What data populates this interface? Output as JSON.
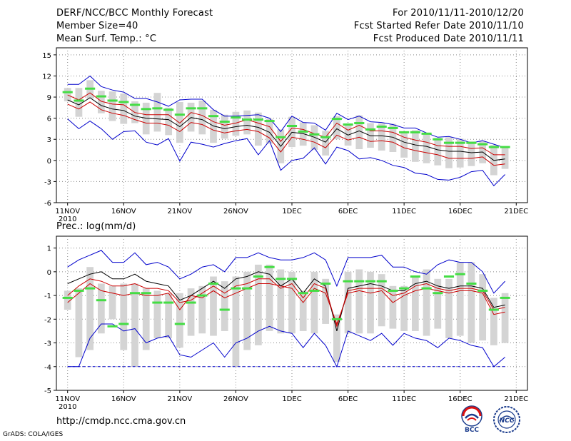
{
  "header": {
    "title": "DERF/NCC/BCC Monthly Forecast",
    "member_size": "Member Size=40",
    "variable": "Mean Surf. Temp.: °C",
    "period": "For 2010/11/11-2010/12/20",
    "fcst_started": "Fcst Started Refer Date 2010/11/10",
    "fcst_produced": "Fcst Produced Date 2010/11/11"
  },
  "footer": {
    "url": "http://cmdp.ncc.cma.gov.cn",
    "credit": "GrADS: COLA/IGES",
    "logo_left_text": "BCC",
    "logo_right_text": "NCC"
  },
  "colors": {
    "envelope": "#0000cc",
    "spread": "#cc0000",
    "mean": "#000000",
    "box": "#d4d4d4",
    "median": "#44dd44",
    "grid": "#888888"
  },
  "chart_data": [
    {
      "type": "line",
      "title": "Mean Surf. Temp.: °C",
      "ylim": [
        -6,
        16
      ],
      "yticks": [
        -6,
        -3,
        0,
        3,
        6,
        9,
        12,
        15
      ],
      "x_ticks": [
        "11NOV",
        "16NOV",
        "21NOV",
        "26NOV",
        "1DEC",
        "6DEC",
        "11DEC",
        "16DEC",
        "21DEC"
      ],
      "x_year_label": "2010",
      "days": 40,
      "series": [
        {
          "name": "max",
          "role": "envelope",
          "values": [
            10.8,
            10.8,
            12.0,
            10.5,
            10.0,
            9.7,
            8.8,
            8.8,
            8.3,
            7.7,
            8.6,
            8.7,
            8.7,
            7.2,
            6.3,
            6.3,
            6.4,
            6.5,
            6.0,
            4.1,
            6.3,
            5.4,
            5.3,
            4.3,
            6.7,
            5.8,
            6.3,
            5.5,
            5.4,
            5.1,
            4.6,
            4.6,
            3.9,
            3.3,
            3.4,
            3.0,
            2.5,
            2.8,
            2.3,
            1.8
          ]
        },
        {
          "name": "upper",
          "role": "spread",
          "values": [
            9.3,
            8.6,
            9.6,
            8.4,
            8.0,
            7.9,
            6.8,
            6.5,
            6.5,
            6.5,
            5.3,
            6.8,
            6.4,
            5.5,
            5.0,
            5.3,
            5.8,
            5.3,
            4.8,
            2.7,
            4.6,
            4.4,
            3.8,
            3.3,
            5.3,
            4.3,
            5.0,
            4.2,
            4.2,
            4.0,
            3.3,
            2.9,
            2.6,
            2.1,
            2.0,
            2.0,
            1.7,
            1.8,
            0.8,
            0.8
          ]
        },
        {
          "name": "mean",
          "role": "mean",
          "values": [
            8.6,
            7.9,
            8.9,
            7.8,
            7.3,
            7.1,
            6.3,
            6.0,
            5.9,
            5.8,
            4.8,
            6.1,
            5.8,
            4.9,
            4.5,
            4.8,
            5.0,
            4.7,
            4.0,
            2.0,
            4.0,
            3.8,
            3.3,
            2.6,
            4.5,
            3.6,
            4.2,
            3.5,
            3.5,
            3.3,
            2.6,
            2.2,
            2.0,
            1.5,
            1.3,
            1.3,
            1.1,
            1.2,
            0.0,
            0.2
          ]
        },
        {
          "name": "lower",
          "role": "spread",
          "values": [
            8.0,
            7.3,
            8.3,
            7.2,
            6.7,
            6.4,
            5.8,
            5.3,
            5.3,
            5.0,
            4.1,
            5.4,
            5.1,
            4.3,
            3.9,
            4.2,
            4.4,
            4.1,
            3.2,
            1.2,
            3.3,
            3.0,
            2.6,
            1.8,
            3.6,
            2.9,
            3.3,
            2.7,
            2.8,
            2.6,
            1.8,
            1.4,
            1.1,
            0.8,
            0.3,
            0.3,
            0.3,
            0.5,
            -0.7,
            -0.5
          ]
        },
        {
          "name": "min",
          "role": "envelope",
          "values": [
            5.9,
            4.5,
            5.6,
            4.5,
            3.0,
            4.1,
            4.2,
            2.6,
            2.2,
            3.1,
            -0.1,
            2.6,
            2.3,
            1.9,
            2.4,
            2.8,
            3.1,
            0.8,
            2.8,
            -1.4,
            0.0,
            0.3,
            1.8,
            -0.5,
            1.9,
            1.4,
            0.2,
            0.4,
            0.0,
            -0.7,
            -1.0,
            -1.8,
            -2.0,
            -2.7,
            -2.8,
            -2.4,
            -1.6,
            -1.4,
            -3.6,
            -2.0
          ]
        }
      ],
      "box_low": [
        8.4,
        6.2,
        8.8,
        6.7,
        5.6,
        5.2,
        5.3,
        3.7,
        4.1,
        3.6,
        2.5,
        4.1,
        3.7,
        2.5,
        3.1,
        3.5,
        3.7,
        2.1,
        2.4,
        -0.4,
        1.9,
        2.1,
        1.5,
        0.7,
        3.0,
        2.1,
        1.6,
        1.8,
        1.4,
        1.2,
        0.4,
        -0.2,
        -0.4,
        -0.7,
        -1.1,
        -1.0,
        -0.8,
        -0.4,
        -2.1,
        -1.2
      ],
      "box_high": [
        10.3,
        10.3,
        11.4,
        9.9,
        9.8,
        9.5,
        8.4,
        8.2,
        9.6,
        7.5,
        8.3,
        8.2,
        8.5,
        7.2,
        6.5,
        6.9,
        7.1,
        6.8,
        5.9,
        4.4,
        6.2,
        5.4,
        5.0,
        4.2,
        6.3,
        5.2,
        6.4,
        5.3,
        5.3,
        5.2,
        4.1,
        4.3,
        3.7,
        3.2,
        3.3,
        3.1,
        2.7,
        2.7,
        2.2,
        1.9
      ],
      "median": [
        9.7,
        8.5,
        10.2,
        9.1,
        8.5,
        8.3,
        7.9,
        7.3,
        7.4,
        7.2,
        6.5,
        7.4,
        7.4,
        6.3,
        5.5,
        6.1,
        5.8,
        5.8,
        5.6,
        3.3,
        4.9,
        4.1,
        3.7,
        3.3,
        5.9,
        5.1,
        5.3,
        4.4,
        4.8,
        4.6,
        4.0,
        4.0,
        3.8,
        3.0,
        2.5,
        2.5,
        2.5,
        2.3,
        1.9,
        1.9
      ]
    },
    {
      "type": "line",
      "title": "Prec.: log(mm/d)",
      "ylim": [
        -5,
        1.5
      ],
      "yticks": [
        -5,
        -4,
        -3,
        -2,
        -1,
        0,
        1
      ],
      "x_ticks": [
        "11NOV",
        "16NOV",
        "21NOV",
        "26NOV",
        "1DEC",
        "6DEC",
        "11DEC",
        "16DEC",
        "21DEC"
      ],
      "x_year_label": "2010",
      "days": 40,
      "series": [
        {
          "name": "max",
          "role": "envelope",
          "values": [
            0.2,
            0.5,
            0.7,
            0.9,
            0.4,
            0.4,
            0.8,
            0.3,
            0.4,
            0.2,
            -0.3,
            -0.1,
            0.2,
            0.3,
            0.0,
            0.6,
            0.6,
            0.8,
            0.6,
            0.5,
            0.5,
            0.6,
            0.8,
            0.5,
            -0.6,
            0.6,
            0.6,
            0.6,
            0.7,
            0.2,
            0.2,
            0.0,
            -0.1,
            0.3,
            0.5,
            0.4,
            0.4,
            0.0,
            -0.9,
            -0.4
          ]
        },
        {
          "name": "upper",
          "role": "spread",
          "values": [
            -1.3,
            -0.9,
            -0.5,
            -0.8,
            -0.9,
            -1.0,
            -0.9,
            -1.0,
            -1.0,
            -0.9,
            -1.6,
            -1.0,
            -1.1,
            -0.8,
            -1.1,
            -0.9,
            -0.7,
            -0.5,
            -0.5,
            -0.6,
            -0.7,
            -1.3,
            -0.7,
            -0.9,
            -2.2,
            -0.9,
            -0.8,
            -0.9,
            -0.8,
            -1.3,
            -1.0,
            -0.8,
            -0.7,
            -0.8,
            -0.9,
            -0.8,
            -0.8,
            -0.9,
            -1.8,
            -1.7
          ]
        },
        {
          "name": "mean",
          "role": "mean",
          "values": [
            -0.5,
            -0.3,
            -0.1,
            0.0,
            -0.3,
            -0.3,
            -0.1,
            -0.4,
            -0.5,
            -0.6,
            -1.2,
            -1.0,
            -0.7,
            -0.4,
            -0.7,
            -0.3,
            -0.2,
            0.0,
            -0.1,
            -0.6,
            -0.3,
            -0.9,
            -0.3,
            -0.6,
            -2.5,
            -0.7,
            -0.6,
            -0.5,
            -0.6,
            -0.8,
            -0.8,
            -0.5,
            -0.4,
            -0.6,
            -0.7,
            -0.6,
            -0.6,
            -0.7,
            -1.5,
            -1.4
          ]
        },
        {
          "name": "lower",
          "role": "spread",
          "values": [
            -1.0,
            -0.6,
            -0.3,
            -0.4,
            -0.6,
            -0.6,
            -0.5,
            -0.7,
            -0.7,
            -0.8,
            -1.3,
            -1.2,
            -0.9,
            -0.6,
            -0.9,
            -0.6,
            -0.5,
            -0.3,
            -0.3,
            -0.7,
            -0.5,
            -1.1,
            -0.5,
            -0.7,
            -2.3,
            -0.8,
            -0.7,
            -0.7,
            -0.7,
            -1.0,
            -0.9,
            -0.6,
            -0.5,
            -0.7,
            -0.8,
            -0.7,
            -0.7,
            -0.8,
            -1.6,
            -1.5
          ]
        },
        {
          "name": "min",
          "role": "envelope",
          "values": [
            -4.0,
            -4.0,
            -2.8,
            -2.2,
            -2.2,
            -2.5,
            -2.4,
            -3.0,
            -2.8,
            -2.7,
            -3.5,
            -3.6,
            -3.3,
            -3.0,
            -3.6,
            -3.0,
            -2.8,
            -2.5,
            -2.3,
            -2.5,
            -2.6,
            -3.2,
            -2.6,
            -3.1,
            -4.0,
            -2.5,
            -2.7,
            -2.9,
            -2.6,
            -3.1,
            -2.6,
            -2.8,
            -2.9,
            -3.2,
            -2.8,
            -2.9,
            -3.1,
            -3.2,
            -4.0,
            -3.6
          ]
        }
      ],
      "baseline": -4.0,
      "box_low": [
        -1.6,
        -3.6,
        -3.3,
        -2.6,
        -2.0,
        -3.3,
        -4.0,
        -3.3,
        -2.8,
        -2.8,
        -3.2,
        -2.7,
        -2.6,
        -2.7,
        -2.5,
        -4.0,
        -3.3,
        -3.1,
        -2.5,
        -2.6,
        -2.6,
        -2.5,
        -2.6,
        -2.2,
        -3.8,
        -2.6,
        -2.6,
        -2.6,
        -2.3,
        -2.4,
        -2.5,
        -2.5,
        -2.7,
        -2.4,
        -2.8,
        -2.7,
        -3.0,
        -2.9,
        -3.1,
        -3.0
      ],
      "box_high": [
        -0.8,
        -0.7,
        0.2,
        -0.5,
        -0.6,
        -0.5,
        -0.5,
        -0.7,
        -0.8,
        -0.9,
        -0.9,
        -0.7,
        -0.6,
        -0.2,
        -0.4,
        -0.2,
        0.0,
        0.3,
        0.3,
        0.1,
        0.0,
        -0.8,
        0.0,
        -0.3,
        -1.8,
        0.0,
        0.1,
        0.0,
        -0.1,
        -0.6,
        -0.6,
        -0.2,
        0.1,
        -0.3,
        -0.3,
        0.4,
        0.4,
        -0.1,
        -1.1,
        -0.9
      ],
      "median": [
        -1.1,
        -0.8,
        -0.7,
        -1.2,
        -2.3,
        -2.2,
        -0.9,
        -0.9,
        -1.3,
        -1.3,
        -2.2,
        -1.3,
        -1.0,
        -0.5,
        -1.6,
        -0.7,
        -0.7,
        -0.2,
        0.2,
        -0.3,
        -0.3,
        -0.9,
        -0.8,
        -0.5,
        -2.0,
        -0.4,
        -0.4,
        -0.4,
        -0.4,
        -0.8,
        -0.7,
        -0.2,
        -0.7,
        -0.9,
        -0.2,
        -0.1,
        -0.5,
        -0.8,
        -1.6,
        -1.1
      ]
    }
  ]
}
